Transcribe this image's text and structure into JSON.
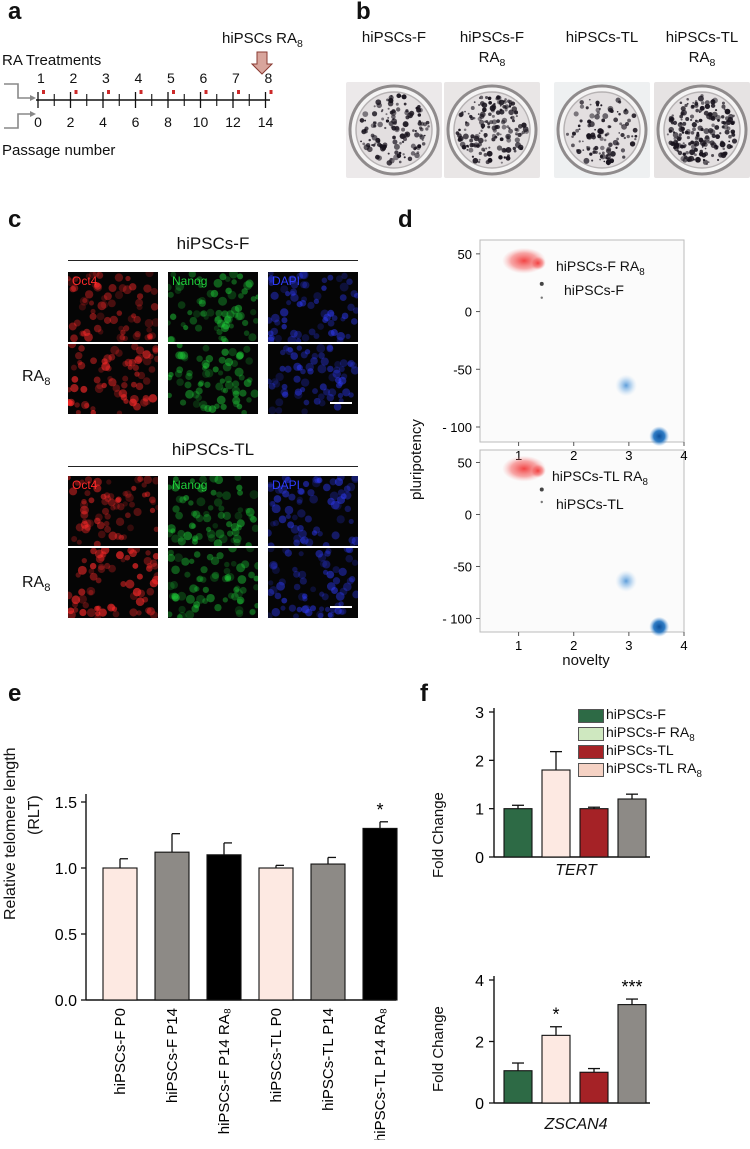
{
  "panel_labels": {
    "a": "a",
    "b": "b",
    "c": "c",
    "d": "d",
    "e": "e",
    "f": "f"
  },
  "panel_a": {
    "hipscs_label": "hiPSCs RA",
    "hipscs_sub": "8",
    "treatments_label": "RA Treatments",
    "treatment_numbers": [
      "1",
      "2",
      "3",
      "4",
      "5",
      "6",
      "7",
      "8"
    ],
    "passage_numbers": [
      "0",
      "2",
      "4",
      "6",
      "8",
      "10",
      "12",
      "14"
    ],
    "passage_label": "Passage number",
    "accent": "#cc2a2a"
  },
  "panel_b": {
    "dishes": [
      {
        "line1": "hiPSCs-F",
        "line2": "",
        "sub": ""
      },
      {
        "line1": "hiPSCs-F",
        "line2": "RA",
        "sub": "8"
      },
      {
        "line1": "hiPSCs-TL",
        "line2": "",
        "sub": ""
      },
      {
        "line1": "hiPSCs-TL",
        "line2": "RA",
        "sub": "8"
      }
    ]
  },
  "panel_c": {
    "groups": [
      {
        "title": "hiPSCs-F",
        "row_label": "RA",
        "row_sub": "8"
      },
      {
        "title": "hiPSCs-TL",
        "row_label": "RA",
        "row_sub": "8"
      }
    ],
    "channels": [
      "Oct4",
      "Nanog",
      "DAPI"
    ],
    "channel_colors": [
      "#ff2a2a",
      "#1fcf3a",
      "#2f3cff"
    ]
  },
  "panel_d": {
    "ylabel": "pluripotency",
    "xlabel": "novelty",
    "xticks": [
      "1",
      "2",
      "3",
      "4"
    ],
    "yticks": [
      "50",
      "0",
      "-50",
      "- 100"
    ],
    "top_labels": [
      "hiPSCs-F  RA",
      "hiPSCs-F"
    ],
    "bottom_labels": [
      "hiPSCs-TL RA",
      "hiPSCs-TL"
    ],
    "sub": "8"
  },
  "panel_e": {
    "ylabel_line1": "Relative telomere length",
    "ylabel_line2": "(RLT)",
    "yticks": [
      "1.5",
      "1.0",
      "0.5",
      "0.0"
    ],
    "categories": [
      "hiPSCs-F P0",
      "hiPSCs-F P14",
      "hiPSCs-F P14 RA₈",
      "hiPSCs-TL P0",
      "hiPSCs-TL P14",
      "hiPSCs-TL P14 RA₈"
    ],
    "star": "*"
  },
  "panel_f": {
    "legend": [
      {
        "label": "hiPSCs-F",
        "sub": ""
      },
      {
        "label": "hiPSCs-F RA",
        "sub": "8"
      },
      {
        "label": "hiPSCs-TL",
        "sub": ""
      },
      {
        "label": "hiPSCs-TL RA",
        "sub": "8"
      }
    ],
    "legend_colors": [
      "#2d6a45",
      "#cfe8c0",
      "#a52226",
      "#f5d2c4"
    ],
    "ylabel": "Fold Change",
    "top_gene": "TERT",
    "bottom_gene": "ZSCAN4",
    "top_yticks": [
      "3",
      "2",
      "1",
      "0"
    ],
    "bottom_yticks": [
      "4",
      "2",
      "0"
    ],
    "stars_bottom": [
      "*",
      "***"
    ]
  },
  "chart_data": [
    {
      "type": "bar",
      "panel": "e",
      "ylabel": "Relative telomere length (RLT)",
      "categories": [
        "hiPSCs-F P0",
        "hiPSCs-F P14",
        "hiPSCs-F P14 RA8",
        "hiPSCs-TL P0",
        "hiPSCs-TL P14",
        "hiPSCs-TL P14 RA8"
      ],
      "values": [
        1.0,
        1.12,
        1.1,
        1.0,
        1.03,
        1.3
      ],
      "errors": [
        0.07,
        0.14,
        0.09,
        0.02,
        0.05,
        0.05
      ],
      "colors": [
        "#fde9e2",
        "#8d8a86",
        "#000000",
        "#fde9e2",
        "#8d8a86",
        "#000000"
      ],
      "ylim": [
        0,
        1.5
      ]
    },
    {
      "type": "bar",
      "panel": "f-top",
      "xlabel": "TERT",
      "ylabel": "Fold Change",
      "values": [
        1.0,
        1.8,
        1.0,
        1.2
      ],
      "errors": [
        0.07,
        0.38,
        0.03,
        0.1
      ],
      "colors": [
        "#2d6a45",
        "#fde9e2",
        "#a52226",
        "#8d8a86"
      ],
      "ylim": [
        0,
        3
      ]
    },
    {
      "type": "bar",
      "panel": "f-bottom",
      "xlabel": "ZSCAN4",
      "ylabel": "Fold Change",
      "values": [
        1.05,
        2.2,
        1.0,
        3.2
      ],
      "errors": [
        0.25,
        0.28,
        0.12,
        0.18
      ],
      "colors": [
        "#2d6a45",
        "#fde9e2",
        "#a52226",
        "#8d8a86"
      ],
      "ylim": [
        0,
        4
      ]
    }
  ]
}
